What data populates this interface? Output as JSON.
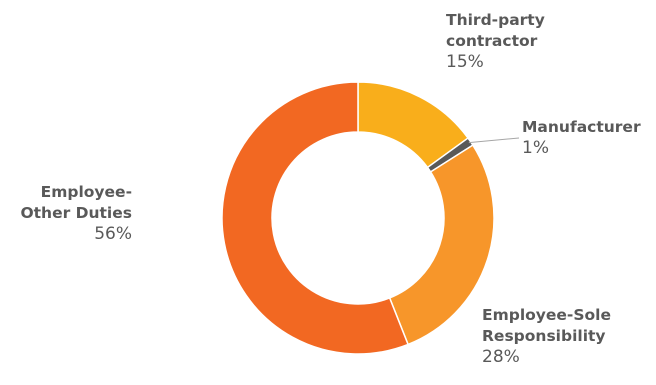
{
  "chart_data": {
    "type": "pie",
    "donut": true,
    "title": "",
    "slices": [
      {
        "label_lines": [
          "Third-party",
          "contractor"
        ],
        "value": 15,
        "value_label": "15%",
        "color": "#F9AE1B"
      },
      {
        "label_lines": [
          "Manufacturer"
        ],
        "value": 1,
        "value_label": "1%",
        "color": "#595959"
      },
      {
        "label_lines": [
          "Employee-Sole",
          "Responsibility"
        ],
        "value": 28,
        "value_label": "28%",
        "color": "#F7962A"
      },
      {
        "label_lines": [
          "Employee-",
          "Other Duties"
        ],
        "value": 56,
        "value_label": "56%",
        "color": "#F26822"
      }
    ],
    "legend": "none"
  }
}
